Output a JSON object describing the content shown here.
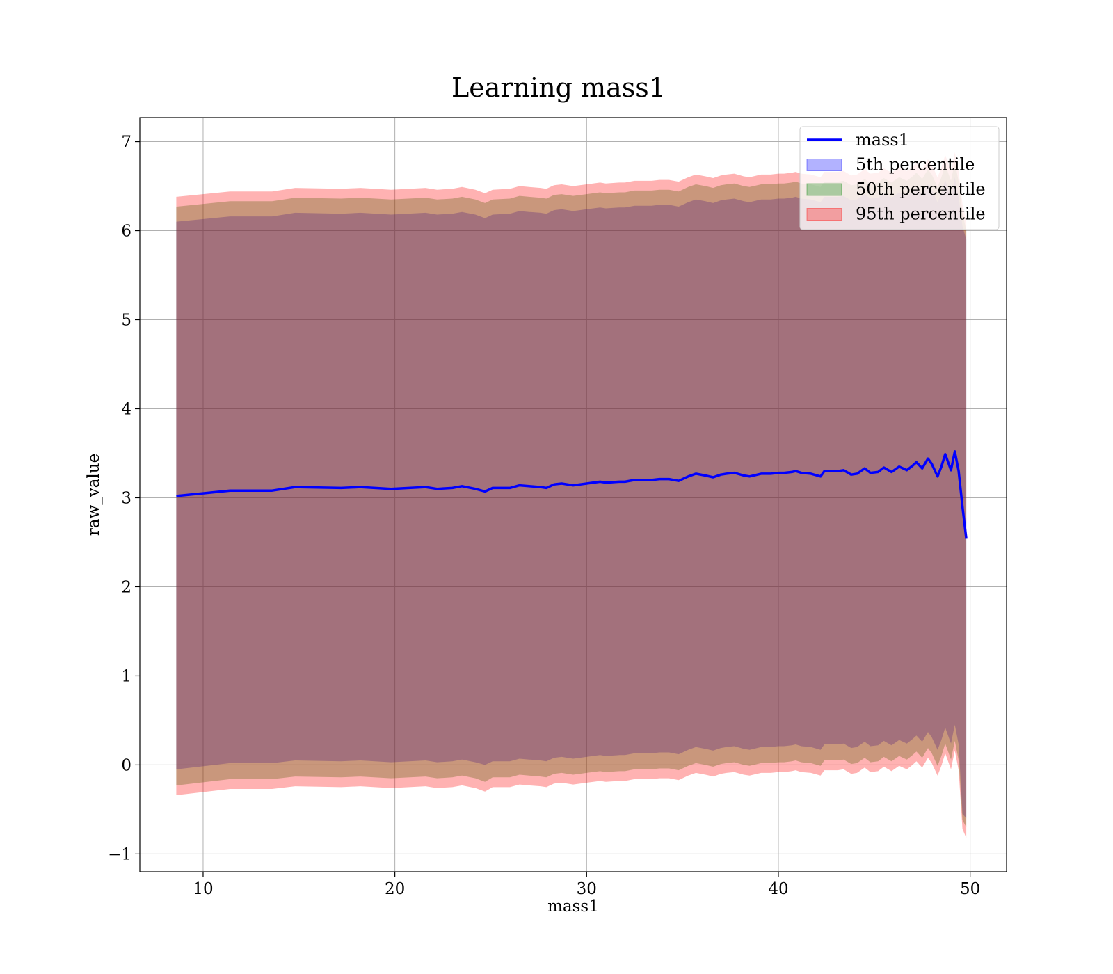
{
  "chart_data": {
    "type": "area",
    "title": "Learning mass1",
    "xlabel": "mass1",
    "ylabel": "raw_value",
    "xlim": [
      6.7,
      51.9
    ],
    "ylim": [
      -1.2,
      7.27
    ],
    "xticks": [
      10,
      20,
      30,
      40,
      50
    ],
    "xtick_labels": [
      "10",
      "20",
      "30",
      "40",
      "50"
    ],
    "yticks": [
      -1,
      0,
      1,
      2,
      3,
      4,
      5,
      6,
      7
    ],
    "ytick_labels": [
      "−1",
      "0",
      "1",
      "2",
      "3",
      "4",
      "5",
      "6",
      "7"
    ],
    "grid": true,
    "legend_position": "top-right",
    "x": [
      8.6,
      11.4,
      13.6,
      14.8,
      17.2,
      18.2,
      19.8,
      21.6,
      22.2,
      23.0,
      23.5,
      24.2,
      24.7,
      25.1,
      26.0,
      26.5,
      27.0,
      27.6,
      27.9,
      28.3,
      28.7,
      29.3,
      30.0,
      30.7,
      31.0,
      31.7,
      32.0,
      32.5,
      33.4,
      33.8,
      34.3,
      34.8,
      35.3,
      35.7,
      36.2,
      36.6,
      37.0,
      37.3,
      37.7,
      38.2,
      38.5,
      39.1,
      39.6,
      40.0,
      40.3,
      40.7,
      40.9,
      41.2,
      41.7,
      42.2,
      42.4,
      43.1,
      43.4,
      43.8,
      44.1,
      44.5,
      44.8,
      45.2,
      45.5,
      45.9,
      46.3,
      46.5,
      46.7,
      47.0,
      47.2,
      47.5,
      47.8,
      48.0,
      48.3,
      48.5,
      48.7,
      49.0,
      49.2,
      49.4,
      49.6,
      49.8
    ],
    "series": [
      {
        "name": "mass1",
        "kind": "line",
        "color": "#0000ff",
        "values": [
          3.02,
          3.08,
          3.08,
          3.12,
          3.11,
          3.12,
          3.1,
          3.12,
          3.1,
          3.11,
          3.13,
          3.1,
          3.07,
          3.11,
          3.11,
          3.14,
          3.13,
          3.12,
          3.11,
          3.15,
          3.16,
          3.14,
          3.16,
          3.18,
          3.17,
          3.18,
          3.18,
          3.2,
          3.2,
          3.21,
          3.21,
          3.19,
          3.24,
          3.27,
          3.25,
          3.23,
          3.26,
          3.27,
          3.28,
          3.25,
          3.24,
          3.27,
          3.27,
          3.28,
          3.28,
          3.29,
          3.3,
          3.28,
          3.27,
          3.24,
          3.3,
          3.3,
          3.31,
          3.26,
          3.27,
          3.33,
          3.28,
          3.29,
          3.34,
          3.29,
          3.35,
          3.33,
          3.31,
          3.36,
          3.4,
          3.33,
          3.44,
          3.38,
          3.24,
          3.35,
          3.49,
          3.31,
          3.52,
          3.3,
          2.9,
          2.54
        ]
      },
      {
        "name": "5th percentile",
        "kind": "band",
        "color": "#0000ff",
        "opacity": 0.3,
        "lower": [
          -0.05,
          0.02,
          0.02,
          0.05,
          0.04,
          0.05,
          0.03,
          0.05,
          0.03,
          0.04,
          0.06,
          0.03,
          0.0,
          0.04,
          0.04,
          0.07,
          0.06,
          0.05,
          0.04,
          0.08,
          0.09,
          0.07,
          0.09,
          0.11,
          0.1,
          0.11,
          0.11,
          0.13,
          0.13,
          0.14,
          0.14,
          0.12,
          0.17,
          0.2,
          0.18,
          0.16,
          0.19,
          0.2,
          0.21,
          0.18,
          0.17,
          0.2,
          0.2,
          0.21,
          0.21,
          0.22,
          0.23,
          0.21,
          0.2,
          0.17,
          0.23,
          0.23,
          0.24,
          0.19,
          0.2,
          0.26,
          0.21,
          0.22,
          0.27,
          0.22,
          0.28,
          0.26,
          0.24,
          0.29,
          0.33,
          0.26,
          0.37,
          0.31,
          0.17,
          0.28,
          0.42,
          0.24,
          0.45,
          0.23,
          -0.55,
          -0.6
        ],
        "upper": [
          6.1,
          6.16,
          6.16,
          6.2,
          6.19,
          6.2,
          6.18,
          6.2,
          6.18,
          6.19,
          6.21,
          6.18,
          6.14,
          6.18,
          6.19,
          6.22,
          6.21,
          6.2,
          6.19,
          6.23,
          6.24,
          6.22,
          6.24,
          6.26,
          6.25,
          6.26,
          6.26,
          6.28,
          6.28,
          6.29,
          6.29,
          6.27,
          6.32,
          6.35,
          6.33,
          6.31,
          6.34,
          6.35,
          6.36,
          6.33,
          6.32,
          6.35,
          6.35,
          6.36,
          6.36,
          6.37,
          6.38,
          6.36,
          6.35,
          6.32,
          6.38,
          6.38,
          6.39,
          6.34,
          6.35,
          6.41,
          6.36,
          6.37,
          6.42,
          6.37,
          6.43,
          6.41,
          6.39,
          6.44,
          6.48,
          6.41,
          6.52,
          6.46,
          6.32,
          6.43,
          6.57,
          6.39,
          6.6,
          6.38,
          6.05,
          5.9
        ]
      },
      {
        "name": "50th percentile",
        "kind": "band",
        "color": "#008000",
        "opacity": 0.3,
        "lower": [
          -0.23,
          -0.16,
          -0.16,
          -0.13,
          -0.14,
          -0.13,
          -0.15,
          -0.13,
          -0.15,
          -0.14,
          -0.12,
          -0.15,
          -0.19,
          -0.14,
          -0.14,
          -0.11,
          -0.12,
          -0.13,
          -0.14,
          -0.1,
          -0.09,
          -0.11,
          -0.09,
          -0.07,
          -0.08,
          -0.07,
          -0.07,
          -0.05,
          -0.05,
          -0.04,
          -0.04,
          -0.06,
          -0.01,
          0.02,
          0.0,
          -0.02,
          0.01,
          0.02,
          0.03,
          0.0,
          -0.01,
          0.02,
          0.02,
          0.03,
          0.03,
          0.04,
          0.05,
          0.03,
          0.02,
          -0.01,
          0.05,
          0.05,
          0.06,
          0.01,
          0.02,
          0.08,
          0.03,
          0.04,
          0.09,
          0.04,
          0.1,
          0.08,
          0.06,
          0.11,
          0.15,
          0.08,
          0.19,
          0.13,
          -0.01,
          0.1,
          0.24,
          0.06,
          0.27,
          0.05,
          -0.62,
          -0.7
        ],
        "upper": [
          6.27,
          6.33,
          6.33,
          6.37,
          6.36,
          6.37,
          6.35,
          6.37,
          6.35,
          6.36,
          6.38,
          6.35,
          6.31,
          6.35,
          6.36,
          6.39,
          6.38,
          6.37,
          6.36,
          6.4,
          6.41,
          6.39,
          6.41,
          6.43,
          6.42,
          6.43,
          6.43,
          6.45,
          6.45,
          6.46,
          6.46,
          6.44,
          6.49,
          6.52,
          6.5,
          6.48,
          6.51,
          6.52,
          6.53,
          6.5,
          6.49,
          6.52,
          6.52,
          6.53,
          6.53,
          6.54,
          6.55,
          6.53,
          6.52,
          6.49,
          6.55,
          6.55,
          6.56,
          6.51,
          6.52,
          6.58,
          6.53,
          6.54,
          6.59,
          6.54,
          6.6,
          6.58,
          6.56,
          6.61,
          6.65,
          6.58,
          6.69,
          6.63,
          6.49,
          6.6,
          6.74,
          6.56,
          6.77,
          6.55,
          6.2,
          6.0
        ]
      },
      {
        "name": "95th percentile",
        "kind": "band",
        "color": "#ff0000",
        "opacity": 0.3,
        "lower": [
          -0.34,
          -0.27,
          -0.27,
          -0.24,
          -0.25,
          -0.24,
          -0.26,
          -0.24,
          -0.26,
          -0.25,
          -0.23,
          -0.26,
          -0.3,
          -0.25,
          -0.25,
          -0.22,
          -0.23,
          -0.24,
          -0.25,
          -0.21,
          -0.2,
          -0.22,
          -0.2,
          -0.18,
          -0.19,
          -0.18,
          -0.18,
          -0.16,
          -0.16,
          -0.15,
          -0.15,
          -0.17,
          -0.12,
          -0.09,
          -0.11,
          -0.13,
          -0.1,
          -0.09,
          -0.08,
          -0.11,
          -0.12,
          -0.09,
          -0.09,
          -0.08,
          -0.08,
          -0.07,
          -0.06,
          -0.08,
          -0.09,
          -0.12,
          -0.06,
          -0.06,
          -0.05,
          -0.1,
          -0.09,
          -0.03,
          -0.08,
          -0.07,
          -0.02,
          -0.07,
          -0.01,
          -0.03,
          -0.05,
          0.0,
          0.04,
          -0.03,
          0.08,
          0.02,
          -0.12,
          -0.01,
          0.13,
          -0.05,
          0.16,
          -0.06,
          -0.72,
          -0.82
        ],
        "upper": [
          6.38,
          6.44,
          6.44,
          6.48,
          6.47,
          6.48,
          6.46,
          6.48,
          6.46,
          6.47,
          6.49,
          6.46,
          6.42,
          6.46,
          6.47,
          6.5,
          6.49,
          6.48,
          6.47,
          6.51,
          6.52,
          6.5,
          6.52,
          6.54,
          6.53,
          6.54,
          6.54,
          6.56,
          6.56,
          6.57,
          6.57,
          6.55,
          6.6,
          6.63,
          6.61,
          6.59,
          6.62,
          6.63,
          6.64,
          6.61,
          6.6,
          6.63,
          6.63,
          6.64,
          6.64,
          6.65,
          6.66,
          6.64,
          6.63,
          6.6,
          6.66,
          6.66,
          6.67,
          6.62,
          6.63,
          6.69,
          6.64,
          6.65,
          6.7,
          6.65,
          6.71,
          6.69,
          6.67,
          6.72,
          6.76,
          6.69,
          6.8,
          6.74,
          6.6,
          6.71,
          6.85,
          6.67,
          6.88,
          6.66,
          6.3,
          6.1
        ]
      }
    ]
  }
}
